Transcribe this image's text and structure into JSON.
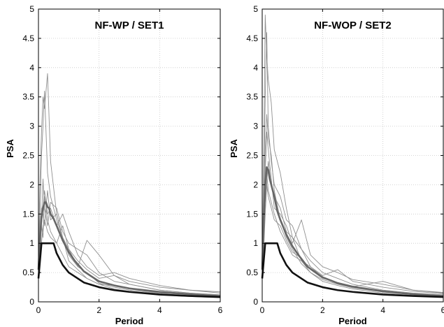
{
  "chart_data": [
    {
      "type": "line",
      "title": "NF-WP / SET1",
      "xlabel": "Period",
      "ylabel": "PSA",
      "xlim": [
        0,
        6
      ],
      "ylim": [
        0,
        5
      ],
      "xticks": [
        0,
        2,
        4,
        6
      ],
      "yticks": [
        0,
        0.5,
        1,
        1.5,
        2,
        2.5,
        3,
        3.5,
        4,
        4.5,
        5
      ],
      "xtick_labels": [
        "0",
        "2",
        "4",
        "6"
      ],
      "ytick_labels": [
        "0",
        "0.5",
        "1",
        "1.5",
        "2",
        "2.5",
        "3",
        "3.5",
        "4",
        "4.5",
        "5"
      ],
      "grid": true,
      "colors": {
        "individual": "#8f8f8f",
        "mean": "#666666",
        "design": "#111111"
      },
      "series": [
        {
          "role": "design",
          "x": [
            0,
            0.1,
            0.5,
            0.6,
            0.8,
            1.0,
            1.5,
            2,
            2.5,
            3,
            4,
            5,
            6
          ],
          "y": [
            0.4,
            1.0,
            1.0,
            0.83,
            0.63,
            0.5,
            0.33,
            0.25,
            0.2,
            0.17,
            0.125,
            0.1,
            0.083
          ]
        },
        {
          "role": "mean",
          "x": [
            0,
            0.05,
            0.1,
            0.15,
            0.2,
            0.25,
            0.3,
            0.35,
            0.4,
            0.5,
            0.6,
            0.8,
            1.0,
            1.2,
            1.5,
            2,
            2.5,
            3,
            4,
            5,
            6
          ],
          "y": [
            0.55,
            1.1,
            1.45,
            1.6,
            1.7,
            1.7,
            1.62,
            1.6,
            1.5,
            1.42,
            1.3,
            1.05,
            0.85,
            0.7,
            0.52,
            0.35,
            0.28,
            0.23,
            0.17,
            0.13,
            0.1
          ]
        },
        {
          "role": "individual",
          "x": [
            0,
            0.05,
            0.1,
            0.15,
            0.2,
            0.3,
            0.4,
            0.6,
            0.8,
            1.0,
            1.3,
            1.6,
            2,
            2.5,
            3,
            4,
            5,
            6
          ],
          "y": [
            0.6,
            2.1,
            2.9,
            3.5,
            3.3,
            3.9,
            2.4,
            1.5,
            1.1,
            0.7,
            0.55,
            0.4,
            0.3,
            0.22,
            0.18,
            0.12,
            0.09,
            0.07
          ]
        },
        {
          "role": "individual",
          "x": [
            0,
            0.05,
            0.1,
            0.15,
            0.2,
            0.3,
            0.4,
            0.6,
            0.8,
            1.0,
            1.3,
            1.6,
            2,
            2.5,
            3,
            4,
            5,
            6
          ],
          "y": [
            0.5,
            1.5,
            2.5,
            3.0,
            3.6,
            2.2,
            1.8,
            1.4,
            1.1,
            0.9,
            0.6,
            0.5,
            0.32,
            0.25,
            0.2,
            0.14,
            0.1,
            0.08
          ]
        },
        {
          "role": "individual",
          "x": [
            0,
            0.05,
            0.1,
            0.15,
            0.2,
            0.3,
            0.4,
            0.6,
            0.8,
            1.0,
            1.3,
            1.6,
            2,
            2.5,
            3,
            4,
            5,
            6
          ],
          "y": [
            0.45,
            0.9,
            1.3,
            1.6,
            1.9,
            1.5,
            1.6,
            1.3,
            1.5,
            1.2,
            0.8,
            0.6,
            0.45,
            0.5,
            0.4,
            0.28,
            0.2,
            0.17
          ]
        },
        {
          "role": "individual",
          "x": [
            0,
            0.05,
            0.1,
            0.15,
            0.2,
            0.3,
            0.4,
            0.6,
            0.8,
            1.0,
            1.3,
            1.6,
            2,
            2.5,
            3,
            4,
            5,
            6
          ],
          "y": [
            0.5,
            1.2,
            1.4,
            2.1,
            1.6,
            1.3,
            1.7,
            1.6,
            1.2,
            1.0,
            0.9,
            0.8,
            0.5,
            0.35,
            0.3,
            0.2,
            0.15,
            0.12
          ]
        },
        {
          "role": "individual",
          "x": [
            0,
            0.05,
            0.1,
            0.15,
            0.2,
            0.3,
            0.4,
            0.6,
            0.8,
            1.0,
            1.3,
            1.6,
            2,
            2.5,
            3,
            4,
            5,
            6
          ],
          "y": [
            0.4,
            0.8,
            1.0,
            1.3,
            1.4,
            1.2,
            1.1,
            1.0,
            1.3,
            0.9,
            0.7,
            0.55,
            0.4,
            0.45,
            0.35,
            0.25,
            0.2,
            0.15
          ]
        },
        {
          "role": "individual",
          "x": [
            0,
            0.05,
            0.1,
            0.15,
            0.2,
            0.3,
            0.4,
            0.6,
            0.8,
            1.0,
            1.3,
            1.6,
            2,
            2.5,
            3,
            4,
            5,
            6
          ],
          "y": [
            0.45,
            0.7,
            1.3,
            1.1,
            1.8,
            1.4,
            1.2,
            1.0,
            0.8,
            0.6,
            0.5,
            0.4,
            0.3,
            0.28,
            0.22,
            0.15,
            0.12,
            0.1
          ]
        },
        {
          "role": "individual",
          "x": [
            0,
            0.05,
            0.1,
            0.15,
            0.2,
            0.3,
            0.4,
            0.6,
            0.8,
            1.0,
            1.3,
            1.6,
            2,
            2.5,
            3,
            4,
            5,
            6
          ],
          "y": [
            0.5,
            1.1,
            1.6,
            1.5,
            1.3,
            1.9,
            1.4,
            1.5,
            1.1,
            0.8,
            0.6,
            1.05,
            0.8,
            0.45,
            0.3,
            0.2,
            0.15,
            0.12
          ]
        }
      ]
    },
    {
      "type": "line",
      "title": "NF-WOP / SET2",
      "xlabel": "Period",
      "ylabel": "PSA",
      "xlim": [
        0,
        6
      ],
      "ylim": [
        0,
        5
      ],
      "xticks": [
        0,
        2,
        4,
        6
      ],
      "yticks": [
        0,
        0.5,
        1,
        1.5,
        2,
        2.5,
        3,
        3.5,
        4,
        4.5,
        5
      ],
      "xtick_labels": [
        "0",
        "2",
        "4",
        "6"
      ],
      "ytick_labels": [
        "0",
        "0.5",
        "1",
        "1.5",
        "2",
        "2.5",
        "3",
        "3.5",
        "4",
        "4.5",
        "5"
      ],
      "grid": true,
      "colors": {
        "individual": "#8f8f8f",
        "mean": "#666666",
        "design": "#111111"
      },
      "series": [
        {
          "role": "design",
          "x": [
            0,
            0.1,
            0.5,
            0.6,
            0.8,
            1.0,
            1.5,
            2,
            2.5,
            3,
            4,
            5,
            6
          ],
          "y": [
            0.4,
            1.0,
            1.0,
            0.83,
            0.63,
            0.5,
            0.33,
            0.25,
            0.2,
            0.17,
            0.125,
            0.1,
            0.083
          ]
        },
        {
          "role": "mean",
          "x": [
            0,
            0.05,
            0.1,
            0.15,
            0.2,
            0.25,
            0.3,
            0.35,
            0.4,
            0.5,
            0.6,
            0.8,
            1.0,
            1.2,
            1.5,
            2,
            2.5,
            3,
            4,
            5,
            6
          ],
          "y": [
            0.55,
            1.4,
            2.0,
            2.3,
            2.25,
            2.1,
            2.0,
            1.9,
            1.8,
            1.55,
            1.4,
            1.15,
            0.95,
            0.8,
            0.6,
            0.42,
            0.32,
            0.26,
            0.18,
            0.13,
            0.1
          ]
        },
        {
          "role": "individual",
          "x": [
            0,
            0.05,
            0.1,
            0.15,
            0.2,
            0.3,
            0.4,
            0.6,
            0.8,
            1.0,
            1.3,
            1.6,
            2,
            2.5,
            3,
            4,
            5,
            6
          ],
          "y": [
            0.6,
            2.5,
            4.9,
            4.2,
            3.8,
            3.4,
            2.6,
            2.2,
            1.6,
            1.1,
            0.7,
            0.5,
            0.35,
            0.28,
            0.22,
            0.15,
            0.11,
            0.09
          ]
        },
        {
          "role": "individual",
          "x": [
            0,
            0.05,
            0.1,
            0.15,
            0.2,
            0.3,
            0.4,
            0.6,
            0.8,
            1.0,
            1.3,
            1.6,
            2,
            2.5,
            3,
            4,
            5,
            6
          ],
          "y": [
            0.5,
            1.8,
            3.5,
            4.6,
            3.0,
            2.4,
            2.0,
            1.8,
            1.4,
            1.3,
            0.9,
            0.7,
            0.5,
            0.4,
            0.3,
            0.2,
            0.15,
            0.12
          ]
        },
        {
          "role": "individual",
          "x": [
            0,
            0.05,
            0.1,
            0.15,
            0.2,
            0.3,
            0.4,
            0.6,
            0.8,
            1.0,
            1.3,
            1.6,
            2,
            2.5,
            3,
            4,
            5,
            6
          ],
          "y": [
            0.45,
            1.2,
            2.2,
            2.9,
            2.6,
            2.1,
            1.6,
            1.5,
            1.3,
            1.0,
            1.4,
            0.8,
            0.6,
            0.5,
            0.38,
            0.3,
            0.2,
            0.16
          ]
        },
        {
          "role": "individual",
          "x": [
            0,
            0.05,
            0.1,
            0.15,
            0.2,
            0.3,
            0.4,
            0.6,
            0.8,
            1.0,
            1.3,
            1.6,
            2,
            2.5,
            3,
            4,
            5,
            6
          ],
          "y": [
            0.5,
            1.0,
            1.8,
            2.2,
            1.9,
            1.7,
            1.5,
            1.2,
            1.0,
            0.8,
            0.7,
            0.6,
            0.42,
            0.32,
            0.25,
            0.18,
            0.14,
            0.11
          ]
        },
        {
          "role": "individual",
          "x": [
            0,
            0.05,
            0.1,
            0.15,
            0.2,
            0.3,
            0.4,
            0.6,
            0.8,
            1.0,
            1.3,
            1.6,
            2,
            2.5,
            3,
            4,
            5,
            6
          ],
          "y": [
            0.4,
            0.9,
            1.5,
            2.0,
            2.4,
            2.0,
            1.8,
            1.6,
            1.2,
            1.1,
            0.9,
            0.6,
            0.45,
            0.55,
            0.35,
            0.25,
            0.18,
            0.14
          ]
        },
        {
          "role": "individual",
          "x": [
            0,
            0.05,
            0.1,
            0.15,
            0.2,
            0.3,
            0.4,
            0.6,
            0.8,
            1.0,
            1.3,
            1.6,
            2,
            2.5,
            3,
            4,
            5,
            6
          ],
          "y": [
            0.45,
            1.3,
            2.6,
            3.2,
            2.8,
            2.5,
            1.9,
            1.4,
            1.1,
            0.9,
            0.65,
            0.5,
            0.38,
            0.3,
            0.24,
            0.17,
            0.13,
            0.1
          ]
        },
        {
          "role": "individual",
          "x": [
            0,
            0.05,
            0.1,
            0.15,
            0.2,
            0.3,
            0.4,
            0.6,
            0.8,
            1.0,
            1.3,
            1.6,
            2,
            2.5,
            3,
            4,
            5,
            6
          ],
          "y": [
            0.5,
            1.1,
            1.7,
            2.0,
            1.8,
            1.6,
            1.4,
            1.3,
            1.05,
            0.85,
            0.75,
            0.55,
            0.4,
            0.33,
            0.26,
            0.35,
            0.2,
            0.15
          ]
        }
      ]
    }
  ]
}
